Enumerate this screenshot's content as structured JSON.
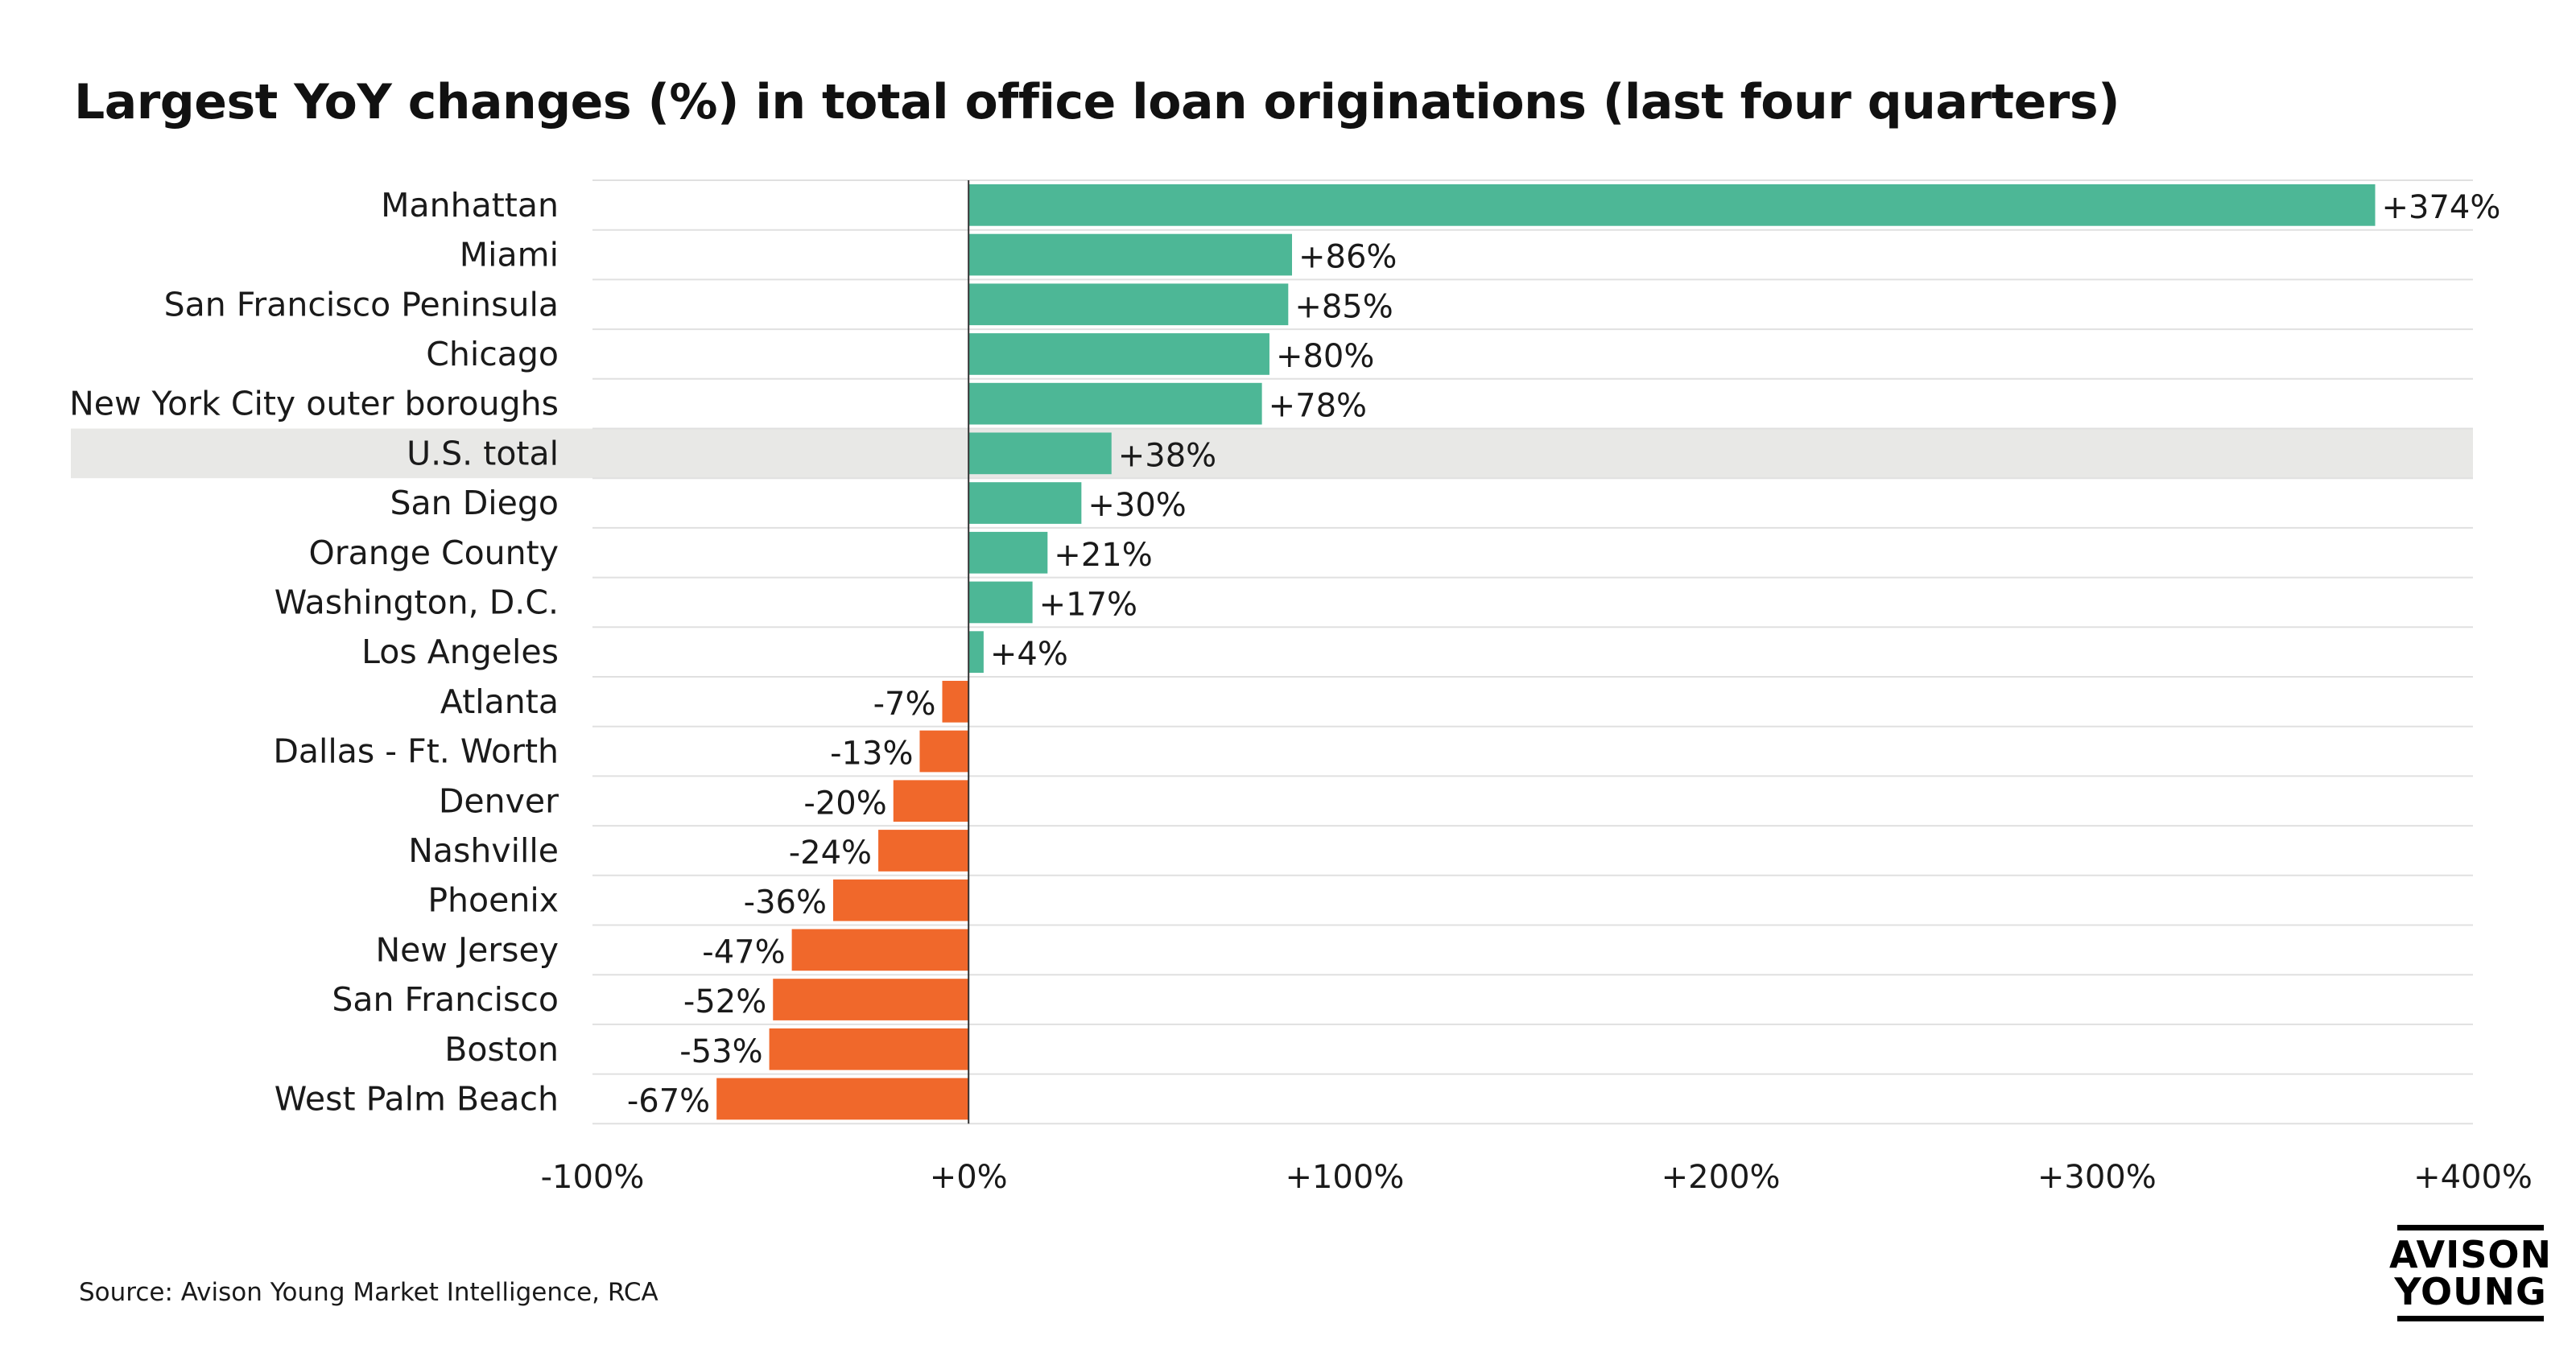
{
  "title": "Largest YoY changes (%) in total office loan originations (last four quarters)",
  "source": "Source: Avison Young Market Intelligence, RCA",
  "logo": {
    "line1": "AVISON",
    "line2": "YOUNG"
  },
  "colors": {
    "positive": "#4db796",
    "negative": "#f0682b",
    "highlight_band": "#e8e8e6",
    "gridline": "#e0e0e0",
    "zero_line": "#333333"
  },
  "chart_data": {
    "type": "bar",
    "orientation": "horizontal",
    "title": "Largest YoY changes (%) in total office loan originations (last four quarters)",
    "xlabel": "",
    "ylabel": "",
    "xlim": [
      -100,
      400
    ],
    "ticks": [
      -100,
      0,
      100,
      200,
      300,
      400
    ],
    "tick_labels": [
      "-100%",
      "+0%",
      "+100%",
      "+200%",
      "+300%",
      "+400%"
    ],
    "highlight_category": "U.S. total",
    "categories": [
      "Manhattan",
      "Miami",
      "San Francisco Peninsula",
      "Chicago",
      "New York City outer boroughs",
      "U.S. total",
      "San Diego",
      "Orange County",
      "Washington, D.C.",
      "Los Angeles",
      "Atlanta",
      "Dallas - Ft. Worth",
      "Denver",
      "Nashville",
      "Phoenix",
      "New Jersey",
      "San Francisco",
      "Boston",
      "West Palm Beach"
    ],
    "values": [
      374,
      86,
      85,
      80,
      78,
      38,
      30,
      21,
      17,
      4,
      -7,
      -13,
      -20,
      -24,
      -36,
      -47,
      -52,
      -53,
      -67
    ],
    "value_labels": [
      "+374%",
      "+86%",
      "+85%",
      "+80%",
      "+78%",
      "+38%",
      "+30%",
      "+21%",
      "+17%",
      "+4%",
      "-7%",
      "-13%",
      "-20%",
      "-24%",
      "-36%",
      "-47%",
      "-52%",
      "-53%",
      "-67%"
    ]
  }
}
